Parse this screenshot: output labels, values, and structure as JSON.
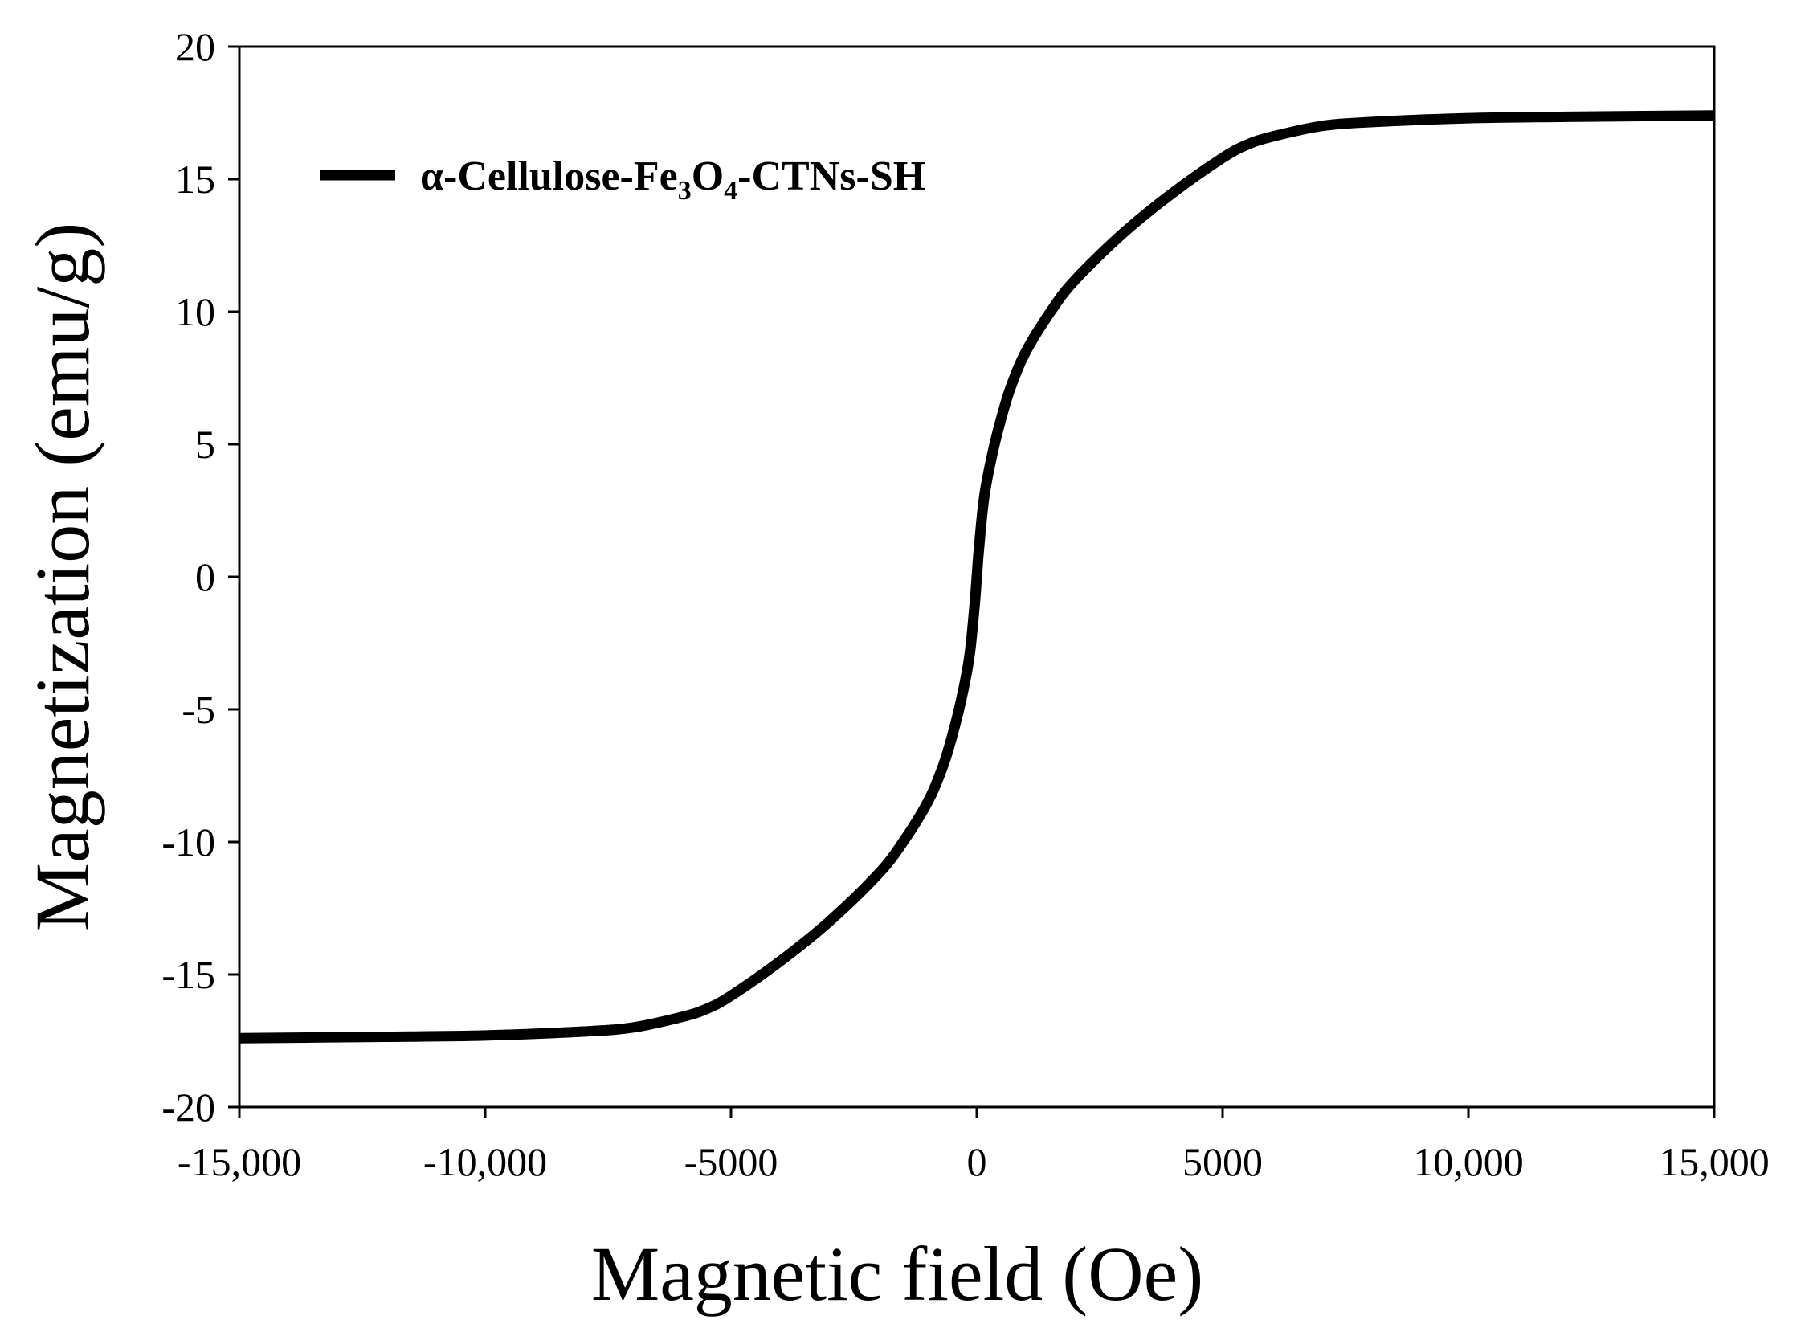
{
  "chart_data": {
    "type": "line",
    "xlabel": "Magnetic field (Oe)",
    "ylabel": "Magnetization (emu/g)",
    "xlim": [
      -15000,
      15000
    ],
    "ylim": [
      -20,
      20
    ],
    "x_ticks": [
      -15000,
      -10000,
      -5000,
      0,
      5000,
      10000,
      15000
    ],
    "x_tick_labels": [
      "-15,000",
      "-10,000",
      "-5000",
      "0",
      "5000",
      "10,000",
      "15,000"
    ],
    "y_ticks": [
      -20,
      -15,
      -10,
      -5,
      0,
      5,
      10,
      15,
      20
    ],
    "y_tick_labels": [
      "-20",
      "-15",
      "-10",
      "-5",
      "0",
      "5",
      "10",
      "15",
      "20"
    ],
    "grid": false,
    "legend_position": "top-left",
    "series": [
      {
        "name": "α-Cellulose-Fe₃O₄-CTNs-SH",
        "legend": {
          "prefix": "α-Cellulose-Fe",
          "sub1": "3",
          "mid": "O",
          "sub2": "4",
          "suffix": "-CTNs-SH"
        },
        "color": "#000000",
        "x": [
          -15000,
          -12000,
          -10000,
          -8000,
          -7000,
          -6000,
          -5500,
          -5000,
          -4000,
          -3000,
          -2000,
          -1500,
          -1000,
          -700,
          -500,
          -300,
          -150,
          -50,
          0,
          50,
          150,
          300,
          500,
          700,
          1000,
          1500,
          2000,
          3000,
          4000,
          5000,
          5500,
          6000,
          7000,
          8000,
          10000,
          12000,
          15000
        ],
        "y": [
          -17.4,
          -17.35,
          -17.3,
          -17.15,
          -17.0,
          -16.6,
          -16.3,
          -15.8,
          -14.5,
          -13.0,
          -11.2,
          -10.0,
          -8.5,
          -7.2,
          -6.0,
          -4.5,
          -3.0,
          -1.2,
          0,
          1.2,
          3.0,
          4.5,
          6.0,
          7.2,
          8.5,
          10.0,
          11.2,
          13.0,
          14.5,
          15.8,
          16.3,
          16.6,
          17.0,
          17.15,
          17.3,
          17.35,
          17.4
        ]
      }
    ]
  }
}
